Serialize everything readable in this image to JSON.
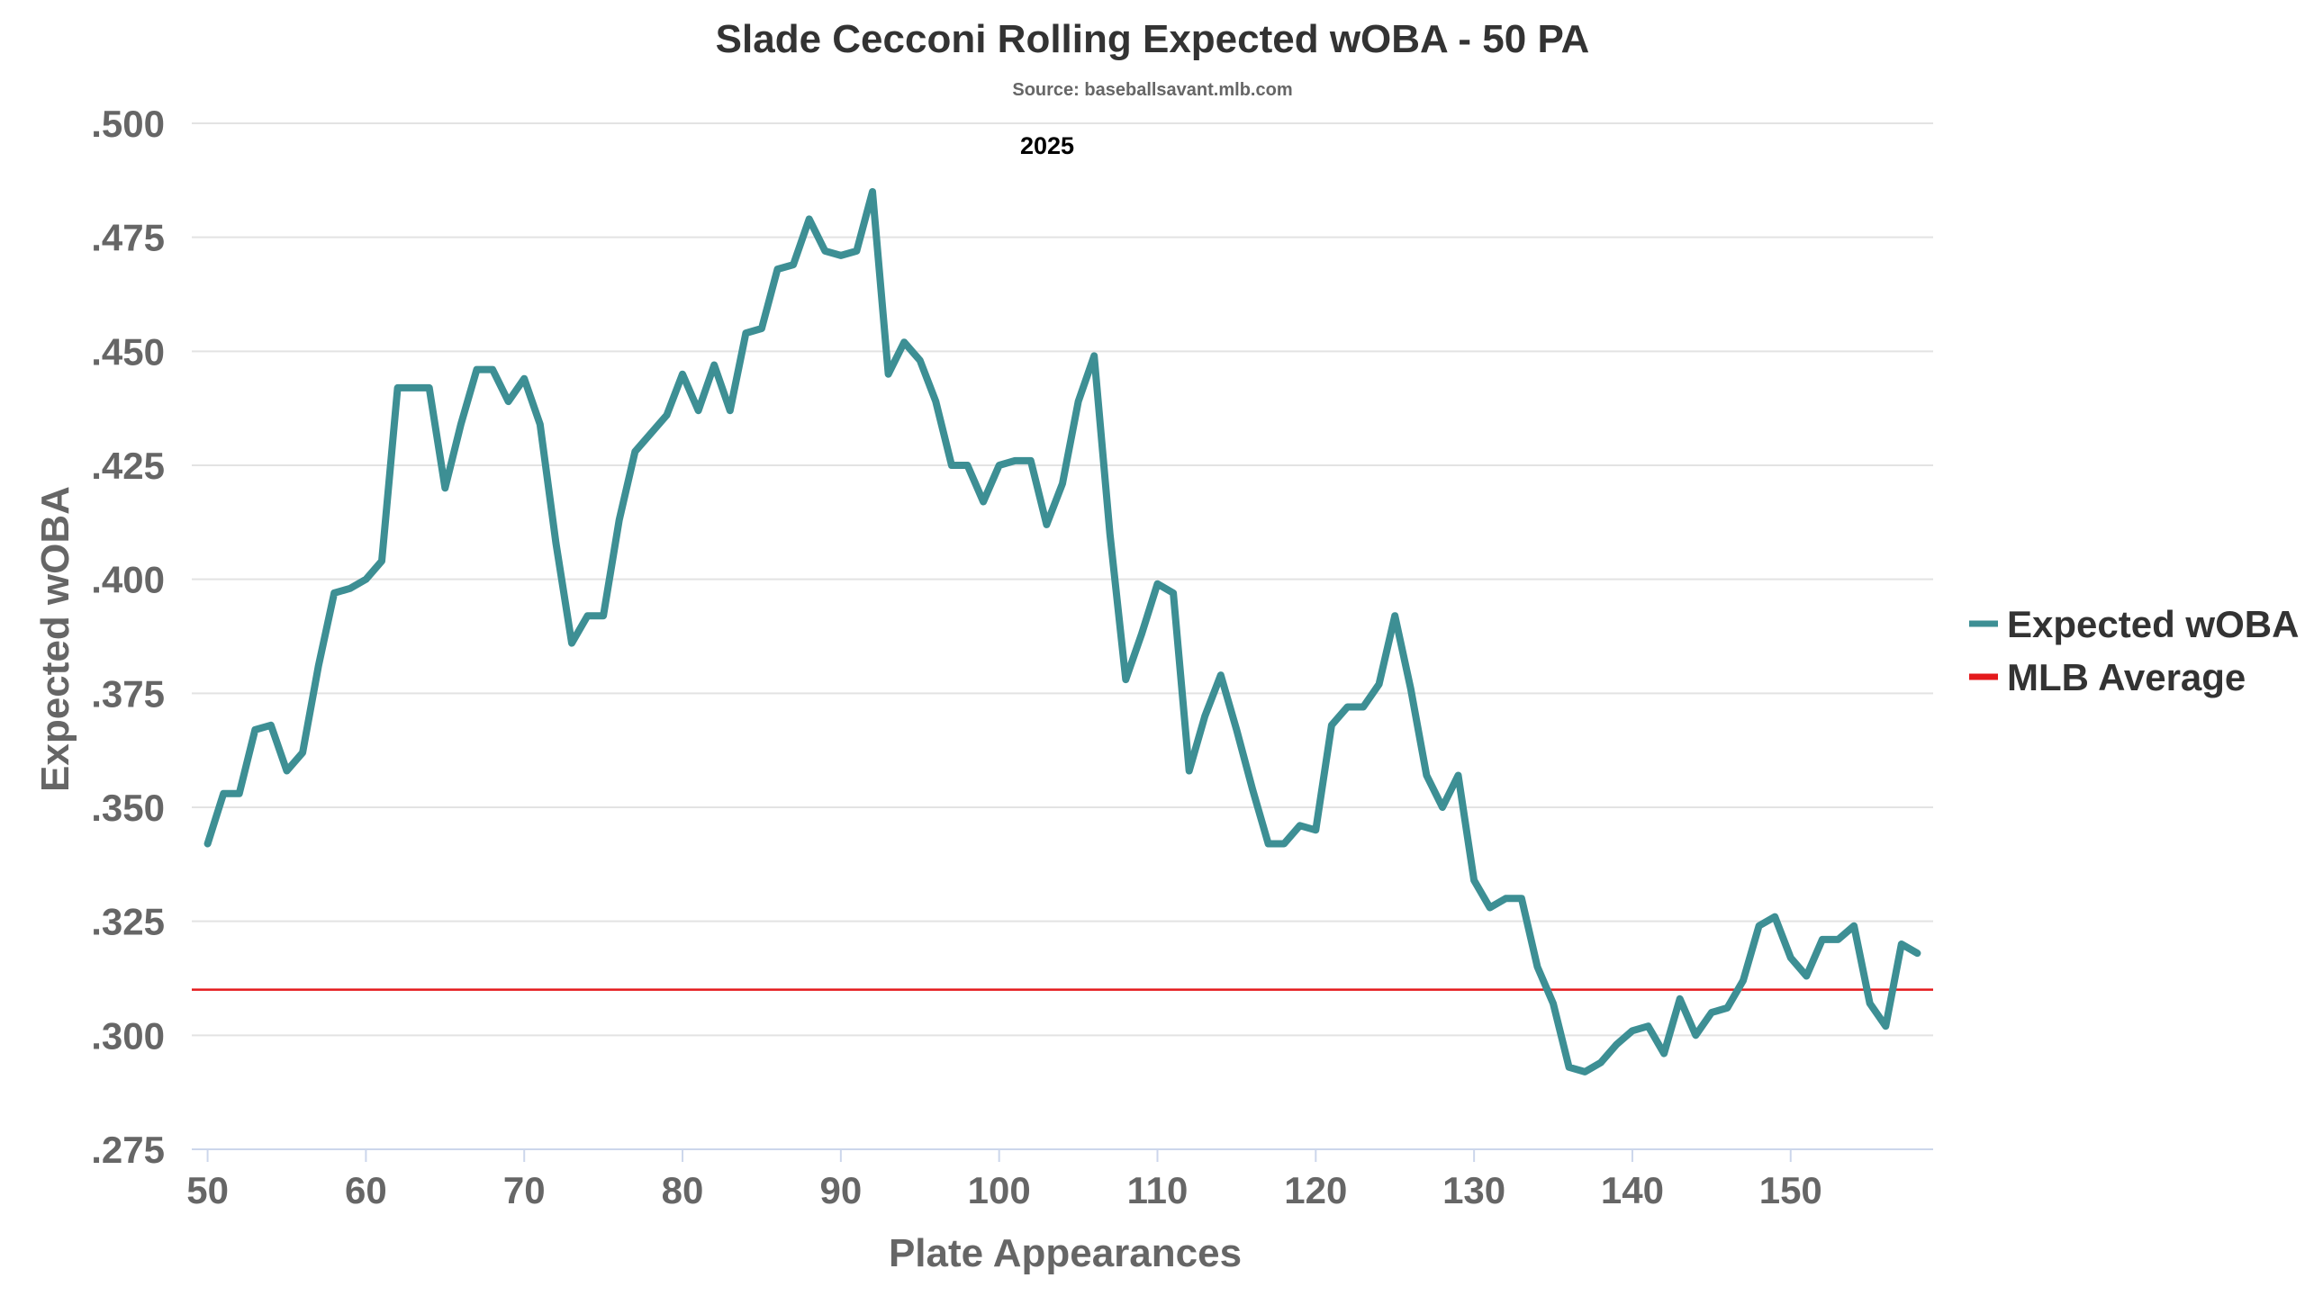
{
  "chart_data": {
    "type": "line",
    "title": "Slade Cecconi Rolling Expected wOBA - 50 PA",
    "subtitle": "Source: baseballsavant.mlb.com",
    "annotation": "2025",
    "xlabel": "Plate Appearances",
    "ylabel": "Expected wOBA",
    "xlim": [
      49,
      159
    ],
    "ylim": [
      0.275,
      0.5
    ],
    "x_ticks": [
      50,
      60,
      70,
      80,
      90,
      100,
      110,
      120,
      130,
      140,
      150
    ],
    "y_ticks": [
      0.275,
      0.3,
      0.325,
      0.35,
      0.375,
      0.4,
      0.425,
      0.45,
      0.475,
      0.5
    ],
    "y_tick_labels": [
      ".275",
      ".300",
      ".325",
      ".350",
      ".375",
      ".400",
      ".425",
      ".450",
      ".475",
      ".500"
    ],
    "grid": true,
    "legend_position": "right",
    "series": [
      {
        "name": "Expected wOBA",
        "color": "#3d8f94",
        "x": [
          50,
          51,
          52,
          53,
          54,
          55,
          56,
          57,
          58,
          59,
          60,
          61,
          62,
          63,
          64,
          65,
          66,
          67,
          68,
          69,
          70,
          71,
          72,
          73,
          74,
          75,
          76,
          77,
          78,
          79,
          80,
          81,
          82,
          83,
          84,
          85,
          86,
          87,
          88,
          89,
          90,
          91,
          92,
          93,
          94,
          95,
          96,
          97,
          98,
          99,
          100,
          101,
          102,
          103,
          104,
          105,
          106,
          107,
          108,
          109,
          110,
          111,
          112,
          113,
          114,
          115,
          116,
          117,
          118,
          119,
          120,
          121,
          122,
          123,
          124,
          125,
          126,
          127,
          128,
          129,
          130,
          131,
          132,
          133,
          134,
          135,
          136,
          137,
          138,
          139,
          140,
          141,
          142,
          143,
          144,
          145,
          146,
          147,
          148,
          149,
          150,
          151,
          152,
          153,
          154,
          155,
          156,
          157,
          158
        ],
        "y": [
          0.342,
          0.353,
          0.353,
          0.367,
          0.368,
          0.358,
          0.362,
          0.381,
          0.397,
          0.398,
          0.4,
          0.404,
          0.442,
          0.442,
          0.442,
          0.42,
          0.434,
          0.446,
          0.446,
          0.439,
          0.444,
          0.434,
          0.408,
          0.386,
          0.392,
          0.392,
          0.413,
          0.428,
          0.432,
          0.436,
          0.445,
          0.437,
          0.447,
          0.437,
          0.454,
          0.455,
          0.468,
          0.469,
          0.479,
          0.472,
          0.471,
          0.472,
          0.485,
          0.445,
          0.452,
          0.448,
          0.439,
          0.425,
          0.425,
          0.417,
          0.425,
          0.426,
          0.426,
          0.412,
          0.421,
          0.439,
          0.449,
          0.41,
          0.378,
          0.388,
          0.399,
          0.397,
          0.358,
          0.37,
          0.379,
          0.367,
          0.354,
          0.342,
          0.342,
          0.346,
          0.345,
          0.368,
          0.372,
          0.372,
          0.377,
          0.392,
          0.376,
          0.357,
          0.35,
          0.357,
          0.334,
          0.328,
          0.33,
          0.33,
          0.315,
          0.307,
          0.293,
          0.292,
          0.294,
          0.298,
          0.301,
          0.302,
          0.296,
          0.308,
          0.3,
          0.305,
          0.306,
          0.312,
          0.324,
          0.326,
          0.317,
          0.313,
          0.321,
          0.321,
          0.324,
          0.307,
          0.302,
          0.32,
          0.318
        ]
      },
      {
        "name": "MLB Average",
        "color": "#e41a1c",
        "constant": 0.31
      }
    ]
  }
}
